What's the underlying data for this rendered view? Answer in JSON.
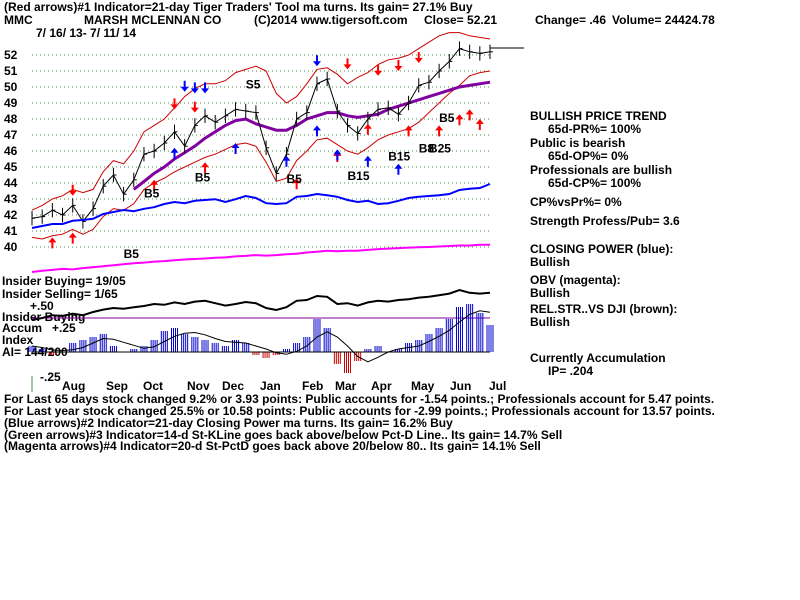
{
  "header": {
    "line1": "(Red arrows)#1 Indicator=21-day Tiger Traders' Tool ma turns. Its gain= 27.1% Buy",
    "ticker": "MMC",
    "company": "MARSH MCLENNAN CO",
    "copyright": "(C)2014 www.tigersoft.com",
    "close": "Close=  52.21",
    "change": "Change= .46",
    "volume": "Volume= 24424.78",
    "dates": "7/ 16/ 13-  7/ 11/ 14"
  },
  "side": {
    "trend_title": "BULLISH PRICE TREND",
    "trend_val": "65d-PR%= 100%",
    "public_title": "Public is bearish",
    "public_val": "65d-OP%= 0%",
    "pros_title": "Professionals are bullish",
    "pros_val": "65d-CP%= 100%",
    "cpvspr": "CP%vsPr%=  0%",
    "strength": "Strength Profess/Pub= 3.6",
    "cp_title": "CLOSING POWER (blue):",
    "cp_val": "Bullish",
    "obv_title": "OBV (magenta):",
    "obv_val": "Bullish",
    "rel_title": "REL.STR..VS DJI (brown):",
    "rel_val": "Bullish",
    "accum_title": "Currently Accumulation",
    "accum_val": "IP=  .204"
  },
  "lower": {
    "insider_buying": "Insider Buying= 19/05",
    "insider_selling": "Insider Selling= 1/65",
    "lbl_plus50": "+.50",
    "lbl_insider2": "Insider Buying",
    "lbl_accum": "Accum",
    "lbl_plus25": "+.25",
    "lbl_index": "Index",
    "ai": "AI= 144/200",
    "lbl_minus25": "-.25"
  },
  "footer": [
    "For Last 65 days stock changed  9.2% or  3.93 points:  Public accounts for -1.54 points.;  Professionals account for  5.47 points.",
    "For Last year stock changed  25.5% or  10.58 points:  Public accounts for -2.99 points.;  Professionals account for  13.57 points.",
    "(Blue arrows)#2 Indicator=21-day Closing Power ma turns. Its gain= 16.2% Buy",
    "(Green arrows)#3 Indicator=14-d St-KLine goes back above/below Pct-D Line.. Its gain= 14.7% Sell",
    "(Magenta arrows)#4 Indicator=20-d St-PctD goes back above 20/below 80.. Its gain= 14.1% Sell"
  ],
  "chart_data": {
    "type": "line",
    "x": [
      "Aug",
      "Sep",
      "Oct",
      "Nov",
      "Dec",
      "Jan",
      "Feb",
      "Mar",
      "Apr",
      "May",
      "Jun",
      "Jul"
    ],
    "yticks": [
      52,
      51,
      50,
      49,
      48,
      47,
      46,
      45,
      44,
      43,
      42,
      41,
      40
    ],
    "ylim": [
      40,
      52.7
    ],
    "price": [
      41.8,
      41.9,
      42.3,
      42.0,
      42.6,
      41.6,
      42.4,
      43.8,
      44.5,
      43.3,
      44.2,
      45.8,
      46.0,
      46.5,
      47.2,
      46.3,
      47.6,
      48.2,
      47.8,
      48.2,
      48.6,
      48.5,
      48.4,
      46.2,
      44.6,
      45.8,
      48.0,
      48.4,
      50.2,
      50.5,
      48.5,
      47.6,
      47.1,
      48.0,
      48.6,
      48.7,
      48.3,
      49.0,
      50.1,
      50.3,
      51.0,
      51.6,
      52.4,
      52.2,
      52.1,
      52.2
    ],
    "ma": [
      null,
      null,
      null,
      null,
      null,
      null,
      null,
      null,
      null,
      null,
      43.6,
      44.1,
      44.6,
      45.0,
      45.5,
      45.9,
      46.3,
      46.8,
      47.2,
      47.6,
      47.9,
      48.0,
      47.7,
      47.5,
      47.3,
      47.3,
      47.6,
      48.0,
      48.2,
      48.4,
      48.4,
      48.2,
      48.1,
      48.2,
      48.3,
      48.6,
      48.8,
      49.0,
      49.2,
      49.4,
      49.6,
      49.8,
      50.0,
      50.1,
      50.2,
      50.3
    ],
    "upper_band": [
      42.3,
      42.6,
      43.0,
      43.2,
      43.6,
      43.4,
      43.6,
      44.7,
      45.4,
      45.2,
      46.0,
      47.2,
      47.6,
      48.0,
      48.7,
      49.4,
      49.9,
      50.2,
      50.2,
      50.4,
      50.9,
      51.1,
      51.3,
      51.0,
      49.6,
      49.0,
      49.4,
      50.2,
      51.1,
      51.2,
      50.8,
      50.2,
      50.6,
      50.9,
      51.4,
      51.7,
      51.8,
      52.0,
      52.4,
      52.8,
      53.2,
      53.4,
      53.4,
      53.2,
      53.1,
      53.0
    ],
    "lower_band": [
      40.6,
      40.5,
      40.7,
      40.8,
      41.1,
      40.8,
      41.1,
      41.9,
      42.4,
      42.3,
      42.7,
      43.6,
      44.0,
      44.3,
      44.7,
      45.0,
      45.3,
      45.6,
      45.8,
      46.1,
      46.4,
      46.5,
      46.3,
      45.3,
      44.1,
      44.3,
      45.4,
      46.0,
      46.7,
      46.8,
      46.4,
      46.0,
      45.8,
      46.2,
      46.7,
      47.0,
      47.2,
      47.4,
      47.8,
      48.4,
      49.0,
      49.6,
      50.1,
      50.7,
      50.9,
      51.0
    ],
    "series_names": {
      "cp_title": "CLOSING POWER (blue):",
      "obv_title": "OBV (magenta):",
      "rel_title": "REL.STR..VS DJI (brown):"
    },
    "closing_power": [
      0.1,
      0.15,
      0.2,
      0.2,
      0.28,
      0.3,
      0.33,
      0.45,
      0.5,
      0.55,
      0.52,
      0.58,
      0.62,
      0.7,
      0.75,
      0.72,
      0.78,
      0.8,
      0.82,
      0.75,
      0.82,
      0.9,
      0.85,
      0.72,
      0.7,
      0.72,
      0.88,
      0.9,
      0.95,
      0.92,
      0.88,
      0.8,
      0.75,
      0.78,
      0.7,
      0.72,
      0.78,
      0.85,
      0.88,
      0.9,
      0.92,
      0.95,
      1.05,
      1.08,
      1.1,
      1.2
    ],
    "obv": [
      0.0,
      0.05,
      0.08,
      0.12,
      0.1,
      0.15,
      0.18,
      0.22,
      0.26,
      0.3,
      0.34,
      0.36,
      0.4,
      0.42,
      0.45,
      0.48,
      0.5,
      0.52,
      0.55,
      0.56,
      0.6,
      0.62,
      0.65,
      0.63,
      0.65,
      0.68,
      0.7,
      0.75,
      0.78,
      0.82,
      0.8,
      0.82,
      0.82,
      0.85,
      0.88,
      0.9,
      0.92,
      0.94,
      0.95,
      0.96,
      0.98,
      1.0,
      1.02,
      1.02,
      1.05,
      1.05
    ],
    "rel_strength": [
      0.3,
      0.35,
      0.42,
      0.4,
      0.46,
      0.42,
      0.5,
      0.56,
      0.6,
      0.58,
      0.62,
      0.65,
      0.7,
      0.68,
      0.74,
      0.7,
      0.76,
      0.78,
      0.72,
      0.66,
      0.7,
      0.75,
      0.72,
      0.6,
      0.55,
      0.62,
      0.78,
      0.8,
      0.9,
      0.88,
      0.7,
      0.72,
      0.66,
      0.74,
      0.78,
      0.76,
      0.8,
      0.82,
      0.86,
      0.88,
      0.92,
      0.96,
      1.05,
      0.98,
      0.96,
      0.98
    ],
    "accum_index": [
      0.1,
      0.05,
      -0.05,
      0.0,
      0.15,
      0.2,
      0.25,
      0.3,
      0.1,
      0.0,
      0.05,
      0.1,
      0.2,
      0.35,
      0.4,
      0.3,
      0.25,
      0.2,
      0.15,
      0.1,
      0.2,
      0.15,
      -0.05,
      -0.1,
      -0.05,
      0.05,
      0.15,
      0.25,
      0.55,
      0.4,
      -0.2,
      -0.35,
      -0.15,
      0.05,
      0.1,
      0.0,
      0.05,
      0.15,
      0.2,
      0.3,
      0.4,
      0.55,
      0.75,
      0.8,
      0.65,
      0.45
    ],
    "red_up": [
      [
        2,
        40.6
      ],
      [
        4,
        40.9
      ],
      [
        12,
        44.2
      ],
      [
        17,
        45.3
      ],
      [
        26,
        44.3
      ],
      [
        30,
        46.0
      ],
      [
        33,
        47.7
      ],
      [
        37,
        47.6
      ],
      [
        40,
        47.6
      ],
      [
        42,
        48.3
      ],
      [
        43,
        48.6
      ],
      [
        44,
        48.0
      ]
    ],
    "red_down": [
      [
        4,
        43.2
      ],
      [
        14,
        48.6
      ],
      [
        16,
        48.4
      ],
      [
        31,
        51.1
      ],
      [
        34,
        50.7
      ],
      [
        36,
        51.0
      ],
      [
        38,
        51.5
      ]
    ],
    "blue_up": [
      [
        14,
        46.2
      ],
      [
        20,
        46.5
      ],
      [
        25,
        45.7
      ],
      [
        28,
        47.6
      ],
      [
        30,
        46.1
      ],
      [
        33,
        45.7
      ],
      [
        36,
        45.2
      ]
    ],
    "blue_down": [
      [
        15,
        49.7
      ],
      [
        16,
        49.6
      ],
      [
        17,
        49.6
      ],
      [
        28,
        51.3
      ]
    ],
    "labels": [
      {
        "t": "S5",
        "x": 21,
        "y": 49.9
      },
      {
        "t": "B5",
        "x": 16,
        "y": 44.1
      },
      {
        "t": "B5",
        "x": 11,
        "y": 43.1
      },
      {
        "t": "B5",
        "x": 25,
        "y": 44.0
      },
      {
        "t": "B15",
        "x": 31,
        "y": 44.2
      },
      {
        "t": "B15",
        "x": 35,
        "y": 45.4
      },
      {
        "t": "B5",
        "x": 40,
        "y": 47.8
      },
      {
        "t": "B8",
        "x": 38,
        "y": 45.9
      },
      {
        "t": "B25",
        "x": 39,
        "y": 45.9
      },
      {
        "t": "B5",
        "x": 9,
        "y": 39.3
      }
    ]
  },
  "colors": {
    "price_band": "#cc0000",
    "ma": "#8000a0",
    "closing_power": "#0000ff",
    "obv": "#ff00ff",
    "rel_strength": "#8b0000",
    "accum_pos": "#0000cc",
    "accum_neg": "#cc0000",
    "arrow_red": "#ff0000",
    "arrow_blue": "#0000ff"
  }
}
